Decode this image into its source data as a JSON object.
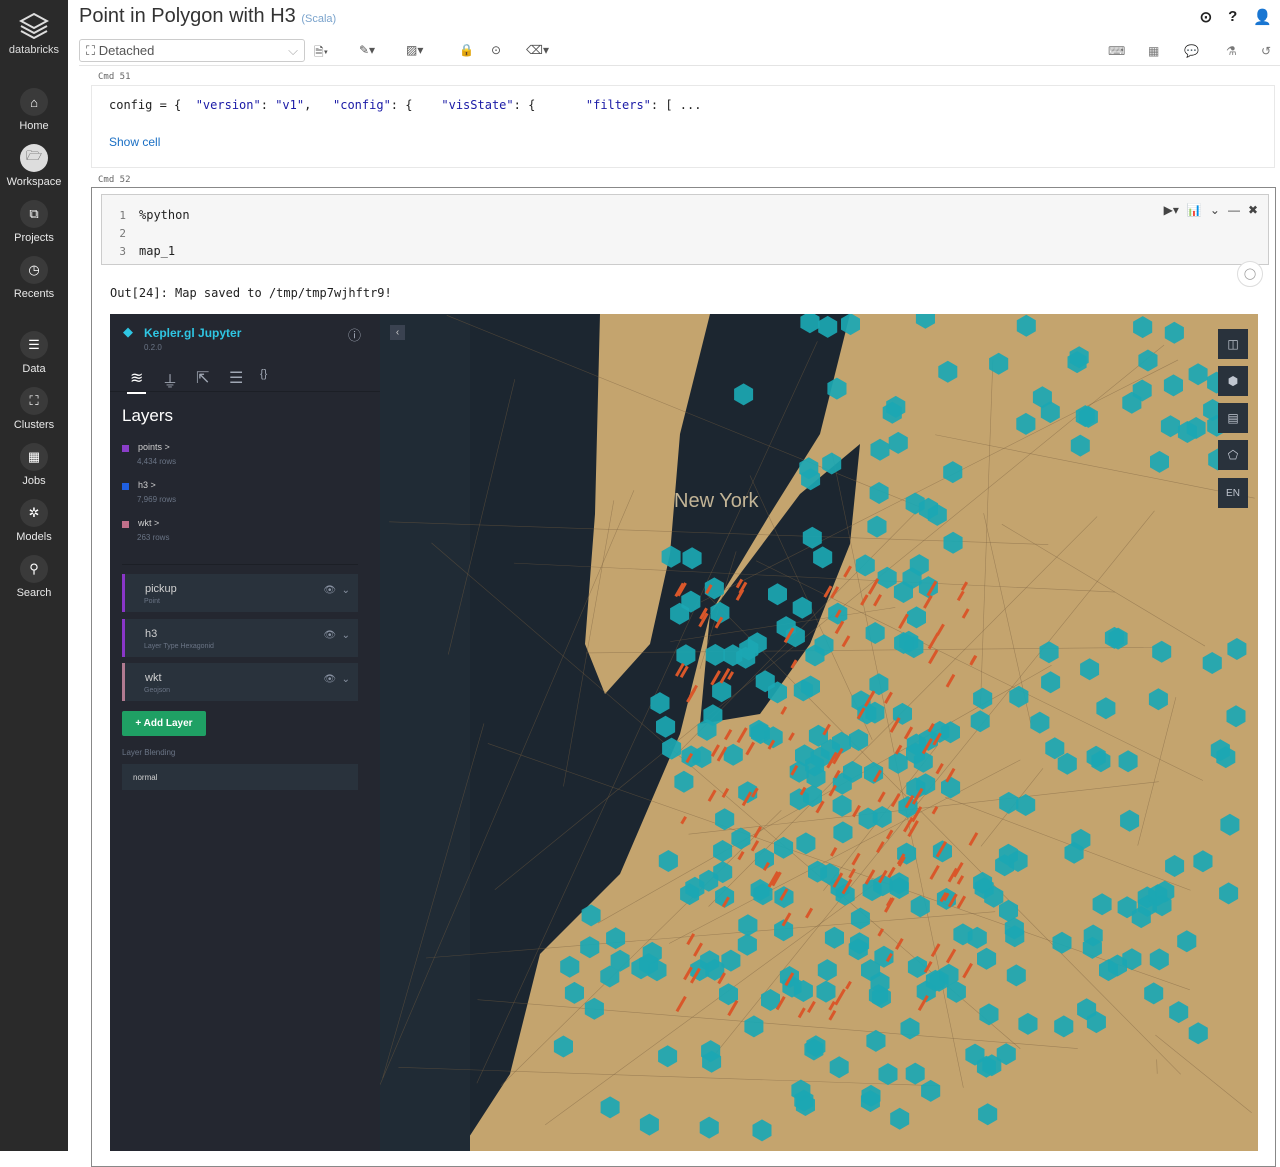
{
  "sidebar": {
    "brand": "databricks",
    "items": [
      {
        "label": "Home",
        "icon": "home-icon"
      },
      {
        "label": "Workspace",
        "icon": "folder-icon",
        "active": true
      },
      {
        "label": "Projects",
        "icon": "projects-icon"
      },
      {
        "label": "Recents",
        "icon": "clock-icon"
      },
      {
        "label": "Data",
        "icon": "database-icon"
      },
      {
        "label": "Clusters",
        "icon": "clusters-icon"
      },
      {
        "label": "Jobs",
        "icon": "calendar-icon"
      },
      {
        "label": "Models",
        "icon": "models-icon"
      },
      {
        "label": "Search",
        "icon": "search-icon"
      }
    ]
  },
  "header": {
    "title": "Point in Polygon with H3",
    "language": "(Scala)",
    "cluster": "Detached"
  },
  "cells": {
    "c51": {
      "label": "Cmd 51",
      "code_prefix": "config = {  ",
      "s1": "\"version\"",
      "c1": ": ",
      "s2": "\"v1\"",
      "c2": ",   ",
      "s3": "\"config\"",
      "c3": ": {    ",
      "s4": "\"visState\"",
      "c4": ": {       ",
      "s5": "\"filters\"",
      "c5": ": [ ...",
      "show_cell": "Show cell"
    },
    "c52": {
      "label": "Cmd 52",
      "lines": [
        "%python",
        "",
        "map_1"
      ],
      "output": "Out[24]: Map saved to /tmp/tmp7wjhftr9!"
    }
  },
  "kepler": {
    "title": "Kepler.gl Jupyter",
    "version": "0.2.0",
    "section": "Layers",
    "datasets": [
      {
        "name": "points >",
        "rows": "4,434 rows",
        "color": "#8a3ec8"
      },
      {
        "name": "h3 >",
        "rows": "7,969 rows",
        "color": "#1f5fe0"
      },
      {
        "name": "wkt >",
        "rows": "263 rows",
        "color": "#c0708a"
      }
    ],
    "layers": [
      {
        "name": "pickup",
        "type": "Point",
        "color": "#8a36c8"
      },
      {
        "name": "h3",
        "type": "Layer Type Hexagonid",
        "color": "#8a36c8"
      },
      {
        "name": "wkt",
        "type": "Geojson",
        "color": "#b07a90"
      }
    ],
    "add_layer": "+ Add Layer",
    "blending_label": "Layer Blending",
    "blending_value": "normal",
    "map_label": "New York",
    "lang": "EN",
    "colors": {
      "land": "#c4a46e",
      "water": "#1c2630",
      "hex": "#1ba7b3",
      "points": "#d9572a"
    }
  }
}
